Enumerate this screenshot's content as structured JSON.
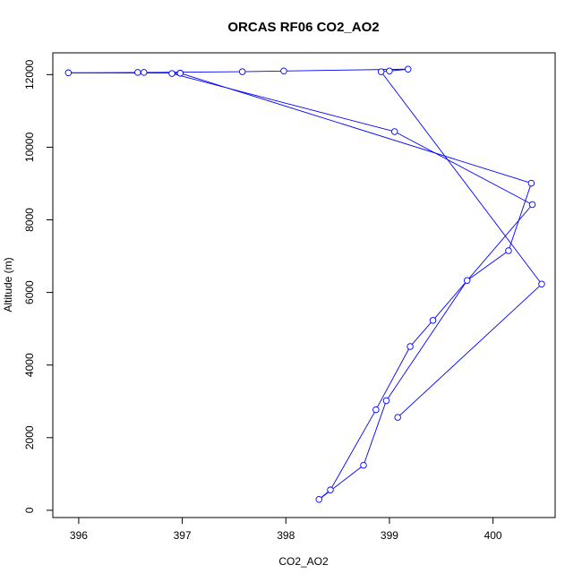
{
  "chart_data": {
    "type": "line",
    "title": "ORCAS RF06 CO2_AO2",
    "xlabel": "CO2_AO2",
    "ylabel": "Altitude (m)",
    "xlim": [
      395.75,
      400.6
    ],
    "ylim": [
      -200,
      12600
    ],
    "xticks": [
      396,
      397,
      398,
      399,
      400
    ],
    "yticks": [
      0,
      2000,
      4000,
      6000,
      8000,
      10000,
      12000
    ],
    "grid": false,
    "line_color": "#0000ff",
    "marker": "open-circle",
    "series": [
      {
        "points": [
          {
            "x": 399.08,
            "y": 2560
          },
          {
            "x": 400.47,
            "y": 6230
          },
          {
            "x": 398.92,
            "y": 12080
          },
          {
            "x": 399.0,
            "y": 12100
          },
          {
            "x": 399.18,
            "y": 12150
          },
          {
            "x": 397.98,
            "y": 12100
          },
          {
            "x": 397.58,
            "y": 12080
          },
          {
            "x": 396.63,
            "y": 12060
          },
          {
            "x": 396.57,
            "y": 12060
          },
          {
            "x": 395.9,
            "y": 12050
          },
          {
            "x": 396.98,
            "y": 12040
          },
          {
            "x": 396.9,
            "y": 12030
          },
          {
            "x": 399.05,
            "y": 10430
          },
          {
            "x": 400.38,
            "y": 8420
          },
          {
            "x": 399.42,
            "y": 5230
          },
          {
            "x": 399.2,
            "y": 4510
          },
          {
            "x": 398.87,
            "y": 2770
          },
          {
            "x": 398.43,
            "y": 560
          },
          {
            "x": 398.32,
            "y": 300
          },
          {
            "x": 398.75,
            "y": 1240
          },
          {
            "x": 398.97,
            "y": 3020
          },
          {
            "x": 399.75,
            "y": 6330
          },
          {
            "x": 400.15,
            "y": 7150
          },
          {
            "x": 400.37,
            "y": 9010
          },
          {
            "x": 396.98,
            "y": 12040
          }
        ]
      }
    ]
  }
}
